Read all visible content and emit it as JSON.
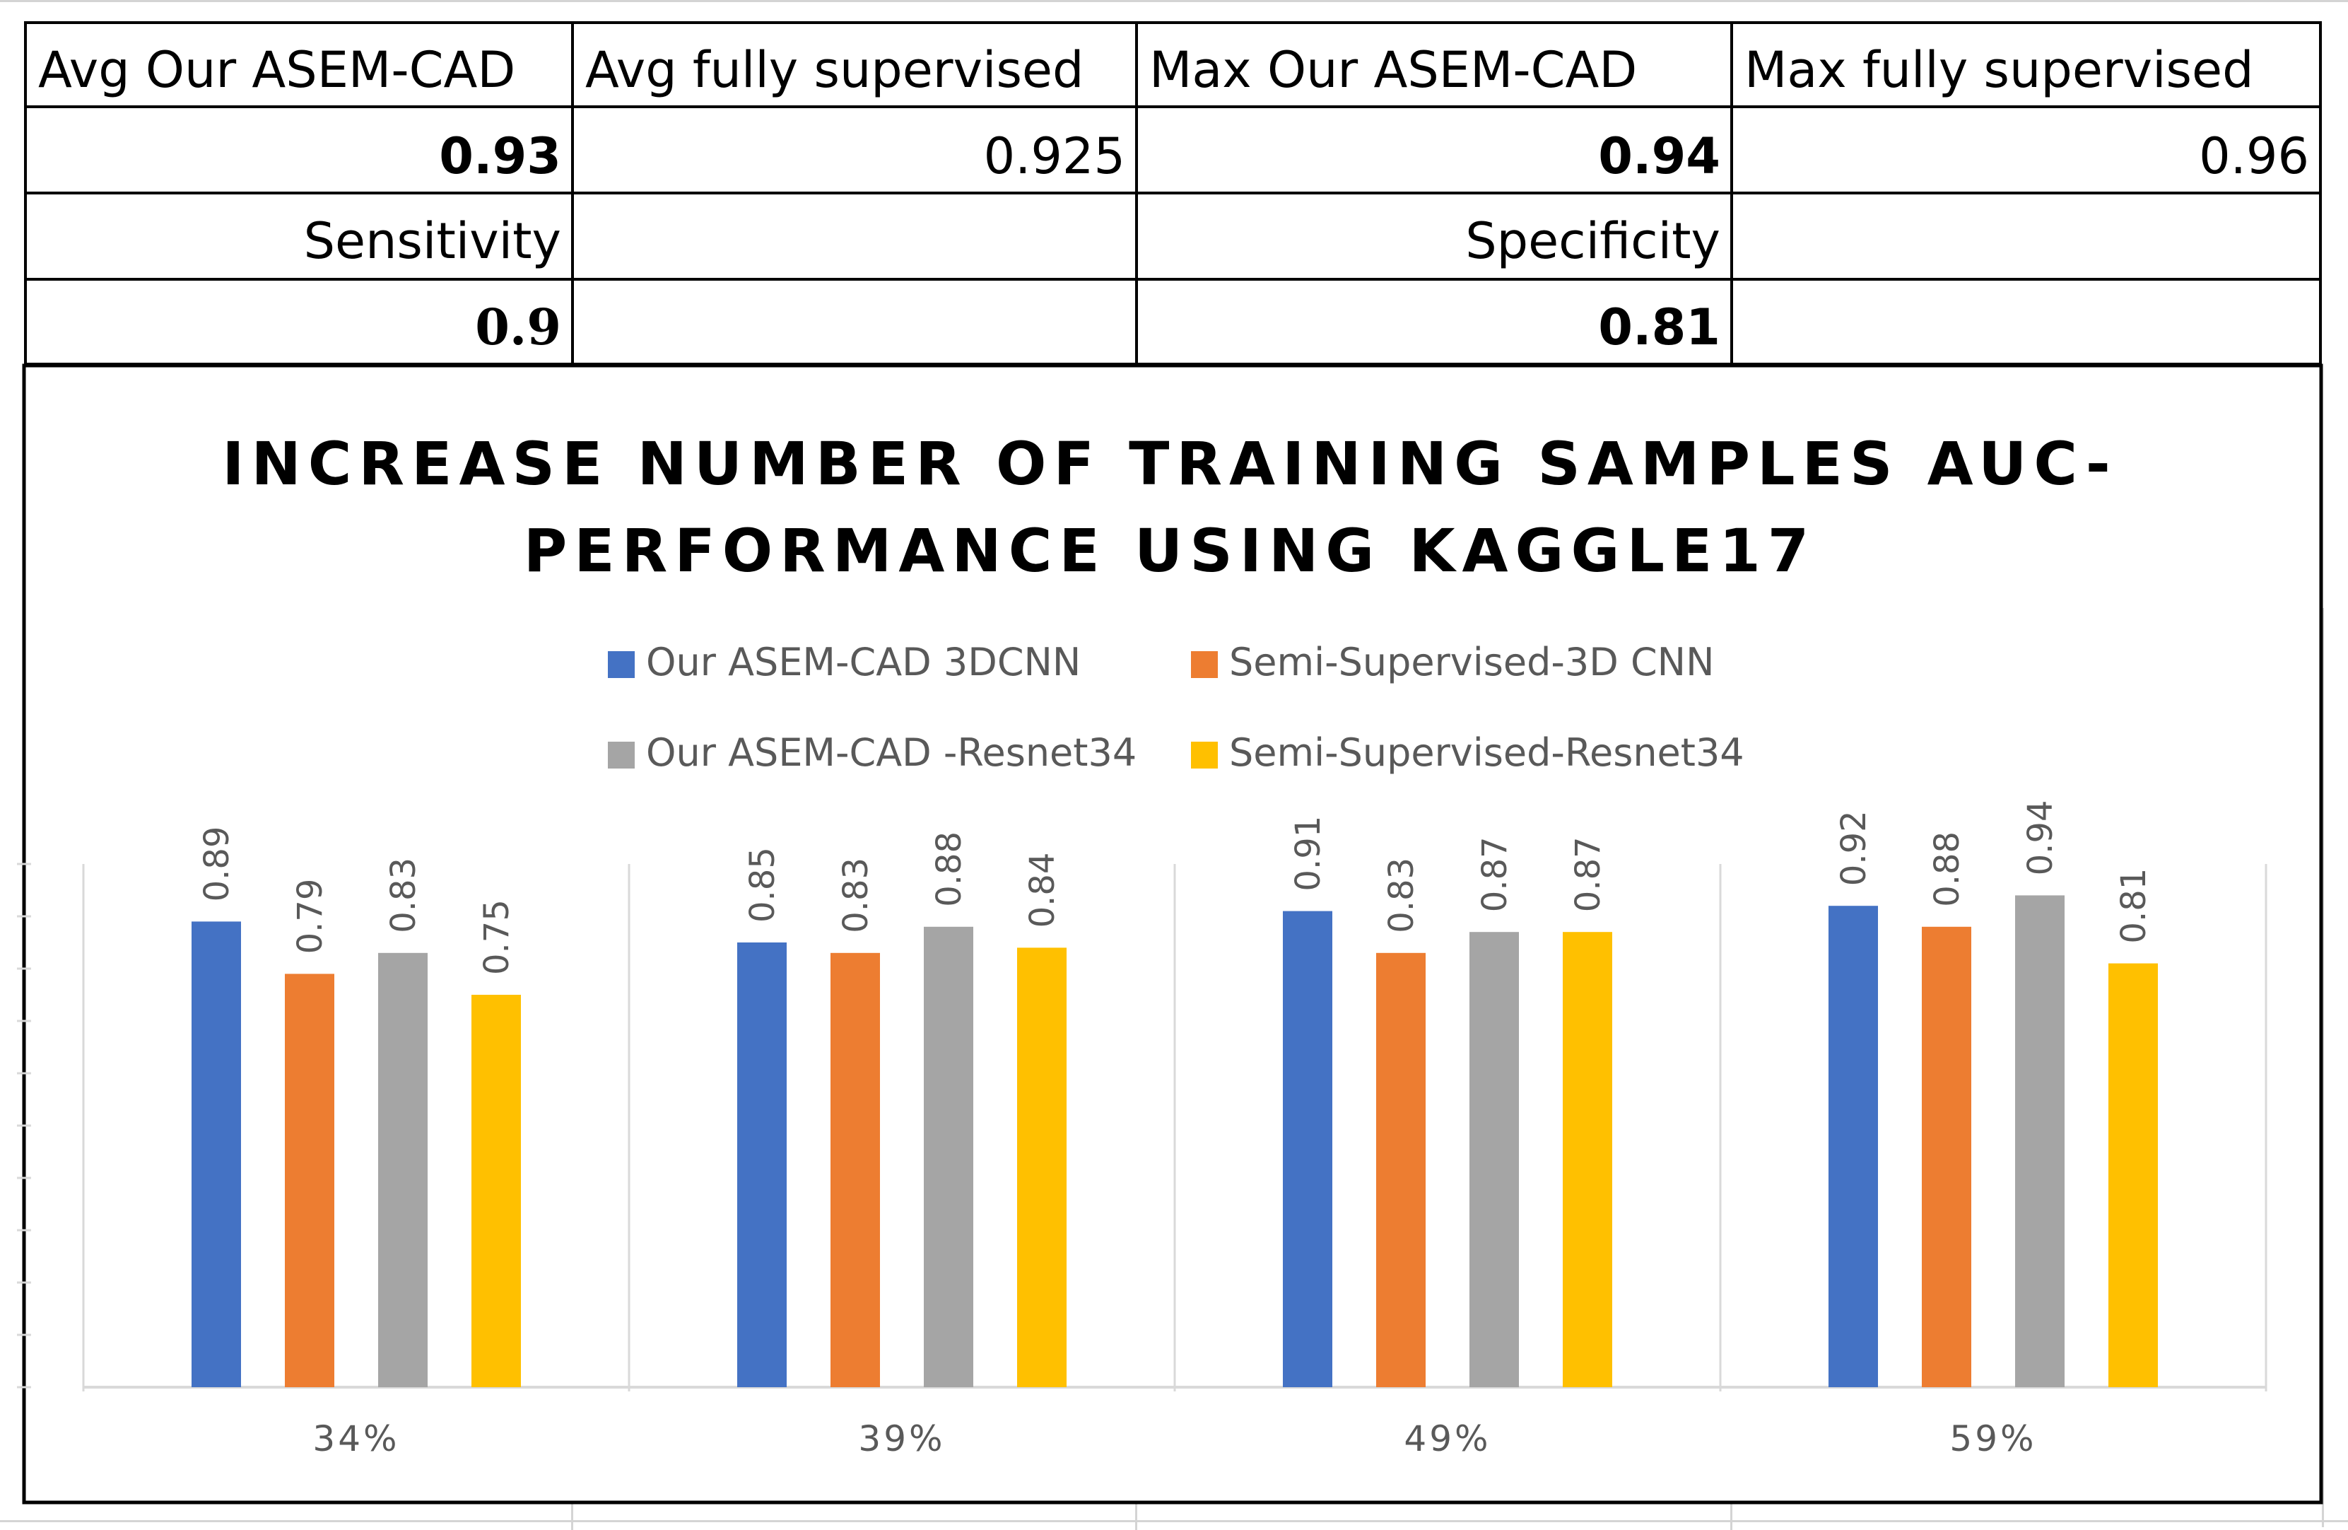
{
  "table": {
    "header": [
      "Avg Our ASEM-CAD",
      "Avg fully supervised",
      "Max Our ASEM-CAD",
      "Max fully supervised"
    ],
    "row1": [
      "0.93",
      "0.925",
      "0.94",
      "0.96"
    ],
    "row2_labels": [
      "Sensitivity",
      "Specificity"
    ],
    "row3_values": [
      "0.9",
      "0.81"
    ]
  },
  "colors": {
    "series": [
      "#4472C4",
      "#ED7D31",
      "#A5A5A5",
      "#FFC000"
    ],
    "axis": "#d9d9d9",
    "text": "#595959"
  },
  "chart_data": {
    "type": "bar",
    "title_lines": [
      "INCREASE NUMBER OF TRAINING SAMPLES AUC-",
      "PERFORMANCE USING KAGGLE17"
    ],
    "categories": [
      "34%",
      "39%",
      "49%",
      "59%"
    ],
    "series": [
      {
        "name": "Our ASEM-CAD 3DCNN",
        "values": [
          0.89,
          0.85,
          0.91,
          0.92
        ],
        "labels": [
          "0.89",
          "0.85",
          "0.91",
          "0.92"
        ]
      },
      {
        "name": "Semi-Supervised-3D CNN",
        "values": [
          0.79,
          0.83,
          0.83,
          0.88
        ],
        "labels": [
          "0.79",
          "0.83",
          "0.83",
          "0.88"
        ]
      },
      {
        "name": "Our ASEM-CAD -Resnet34",
        "values": [
          0.83,
          0.88,
          0.87,
          0.94
        ],
        "labels": [
          "0.83",
          "0.88",
          "0.87",
          "0.94"
        ]
      },
      {
        "name": "Semi-Supervised-Resnet34",
        "values": [
          0.75,
          0.84,
          0.87,
          0.81
        ],
        "labels": [
          "0.75",
          "0.84",
          "0.87",
          "0.81"
        ]
      }
    ],
    "ylim": [
      0,
      1.0
    ],
    "legend": "top",
    "xlabel": "",
    "ylabel": ""
  }
}
